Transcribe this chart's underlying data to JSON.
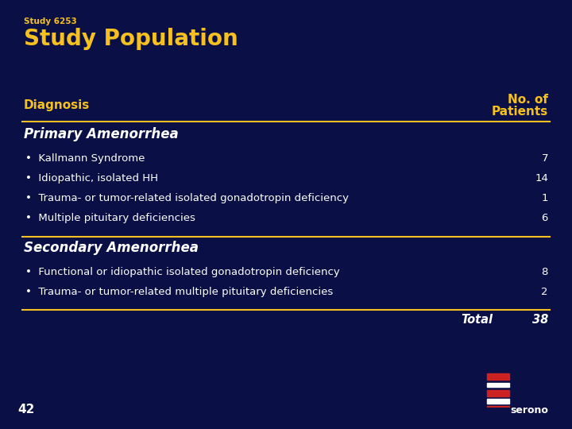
{
  "bg_color": "#0a1045",
  "study_label": "Study 6253",
  "title": "Study Population",
  "col_header_left": "Diagnosis",
  "col_header_right": "No. of\nPatients",
  "section1_header": "Primary Amenorrhea",
  "section2_header": "Secondary Amenorrhea",
  "rows": [
    {
      "label": "Kallmann Syndrome",
      "value": "7",
      "section": 1
    },
    {
      "label": "Idiopathic, isolated HH",
      "value": "14",
      "section": 1
    },
    {
      "label": "Trauma- or tumor-related isolated gonadotropin deficiency",
      "value": "1",
      "section": 1
    },
    {
      "label": "Multiple pituitary deficiencies",
      "value": "6",
      "section": 1
    },
    {
      "label": "Functional or idiopathic isolated gonadotropin deficiency",
      "value": "8",
      "section": 2
    },
    {
      "label": "Trauma- or tumor-related multiple pituitary deficiencies",
      "value": "2",
      "section": 2
    }
  ],
  "total_label": "Total",
  "total_value": "38",
  "footer_number": "42",
  "white": "#ffffff",
  "yellow": "#f5c020",
  "line_color": "#f5c020",
  "bullet": "•"
}
